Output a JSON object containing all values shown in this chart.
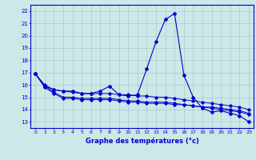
{
  "x": [
    0,
    1,
    2,
    3,
    4,
    5,
    6,
    7,
    8,
    9,
    10,
    11,
    12,
    13,
    14,
    15,
    16,
    17,
    18,
    19,
    20,
    21,
    22,
    23
  ],
  "line_main": [
    16.9,
    15.9,
    15.6,
    15.5,
    15.5,
    15.3,
    15.3,
    15.5,
    15.9,
    15.2,
    15.1,
    15.2,
    17.3,
    19.5,
    21.3,
    21.8,
    16.8,
    15.0,
    14.1,
    13.8,
    13.9,
    13.7,
    13.5,
    13.0
  ],
  "line_trend1": [
    16.9,
    16.0,
    15.6,
    15.5,
    15.4,
    15.3,
    15.3,
    15.3,
    15.3,
    15.2,
    15.2,
    15.1,
    15.1,
    15.0,
    15.0,
    14.9,
    14.8,
    14.7,
    14.6,
    14.5,
    14.4,
    14.3,
    14.2,
    14.0
  ],
  "line_trend2": [
    16.9,
    15.8,
    15.3,
    14.9,
    14.9,
    14.8,
    14.8,
    14.8,
    14.8,
    14.7,
    14.6,
    14.6,
    14.5,
    14.5,
    14.5,
    14.4,
    14.4,
    14.3,
    14.2,
    14.1,
    14.0,
    13.9,
    13.8,
    13.6
  ],
  "line_trend3": [
    16.9,
    15.9,
    15.4,
    15.0,
    15.0,
    14.9,
    14.9,
    14.9,
    14.9,
    14.8,
    14.7,
    14.7,
    14.6,
    14.6,
    14.6,
    14.5,
    14.4,
    14.3,
    14.2,
    14.2,
    14.1,
    14.0,
    13.9,
    13.7
  ],
  "ylim": [
    12.5,
    22.5
  ],
  "yticks": [
    13,
    14,
    15,
    16,
    17,
    18,
    19,
    20,
    21,
    22
  ],
  "xticks": [
    0,
    1,
    2,
    3,
    4,
    5,
    6,
    7,
    8,
    9,
    10,
    11,
    12,
    13,
    14,
    15,
    16,
    17,
    18,
    19,
    20,
    21,
    22,
    23
  ],
  "xlabel": "Graphe des températures (°c)",
  "line_color": "#0000cc",
  "bg_color": "#cce8e8",
  "grid_color": "#aacccc"
}
